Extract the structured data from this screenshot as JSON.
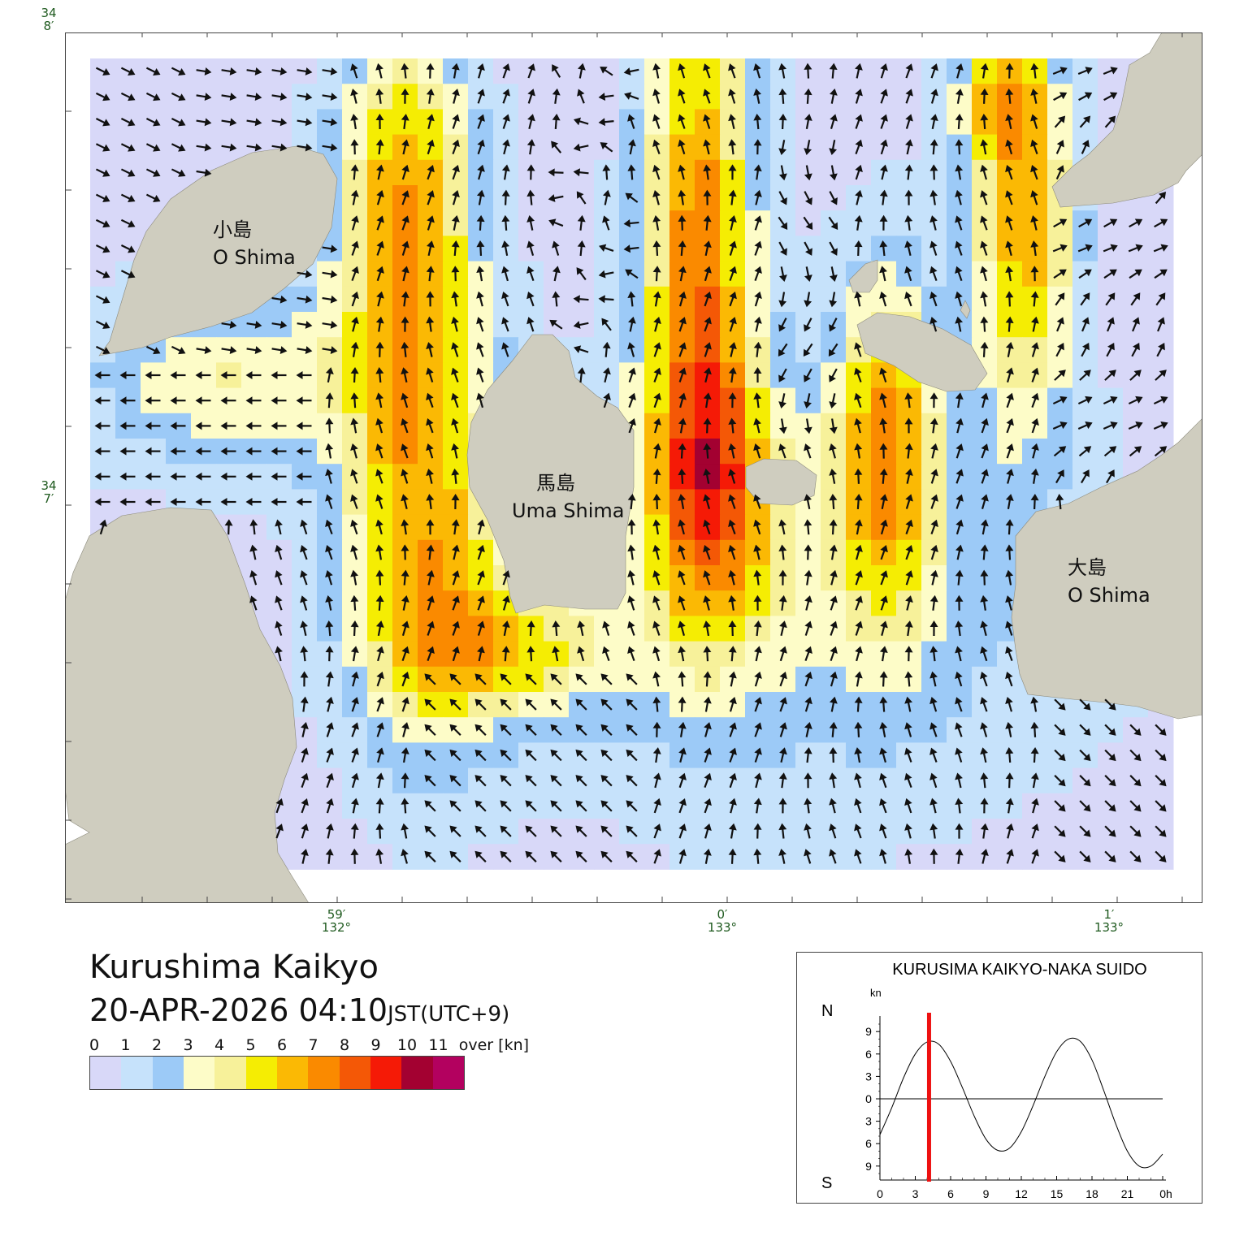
{
  "map": {
    "lat_labels": [
      {
        "deg": "34",
        "min": "8′"
      },
      {
        "deg": "34",
        "min": "7′"
      }
    ],
    "lon_labels": [
      {
        "min": "59′",
        "deg": "132°"
      },
      {
        "min": "0′",
        "deg": "133°"
      },
      {
        "min": "1′",
        "deg": "133°"
      }
    ],
    "places": [
      {
        "jp": "小島",
        "en": "O Shima"
      },
      {
        "jp": "馬島",
        "en": "Uma Shima"
      },
      {
        "jp": "大島",
        "en": "O Shima"
      }
    ],
    "colors": {
      "land": "#cfcdbf",
      "land_edge": "#8c8a7c",
      "arrow": "#111111",
      "frame": "#444444"
    }
  },
  "title": "Kurushima Kaikyo",
  "datetime": {
    "date": "20-APR-2026 04:10",
    "timezone": "JST(UTC+9)"
  },
  "legend": {
    "ticks": [
      "0",
      "1",
      "2",
      "3",
      "4",
      "5",
      "6",
      "7",
      "8",
      "9",
      "10",
      "11",
      "over [kn]"
    ],
    "colors": [
      "#d8d8f8",
      "#c6e2fb",
      "#9ccaf7",
      "#fdfcc8",
      "#f7f19a",
      "#f5ed03",
      "#fbb904",
      "#fa8a00",
      "#f45806",
      "#f51a06",
      "#a30131",
      "#b3015f"
    ]
  },
  "chart_data": {
    "type": "line",
    "title": "KURUSIMA KAIKYO-NAKA SUIDO",
    "unit": "kn",
    "north_label": "N",
    "south_label": "S",
    "x_ticks": [
      "0",
      "3",
      "6",
      "9",
      "12",
      "15",
      "18",
      "21",
      "0h"
    ],
    "y_ticks_top": [
      "9",
      "6",
      "3",
      "0"
    ],
    "y_ticks_bottom": [
      "3",
      "6",
      "9"
    ],
    "xlim": [
      0,
      24
    ],
    "ylim": [
      -10,
      10
    ],
    "current_time_h": 4.17,
    "series": [
      {
        "x": [
          0,
          1,
          2,
          3,
          4,
          5,
          6,
          7,
          8,
          9,
          10,
          11,
          12,
          13,
          14,
          15,
          16,
          17,
          18,
          19,
          20,
          21,
          22,
          23,
          24
        ],
        "values": [
          -4.8,
          -1.2,
          2.8,
          6.0,
          7.6,
          7.3,
          5.0,
          1.5,
          -2.3,
          -5.4,
          -6.9,
          -6.6,
          -4.4,
          -0.9,
          3.0,
          6.3,
          8.0,
          7.7,
          5.2,
          1.1,
          -3.3,
          -7.0,
          -9.0,
          -9.0,
          -7.4
        ]
      }
    ]
  }
}
